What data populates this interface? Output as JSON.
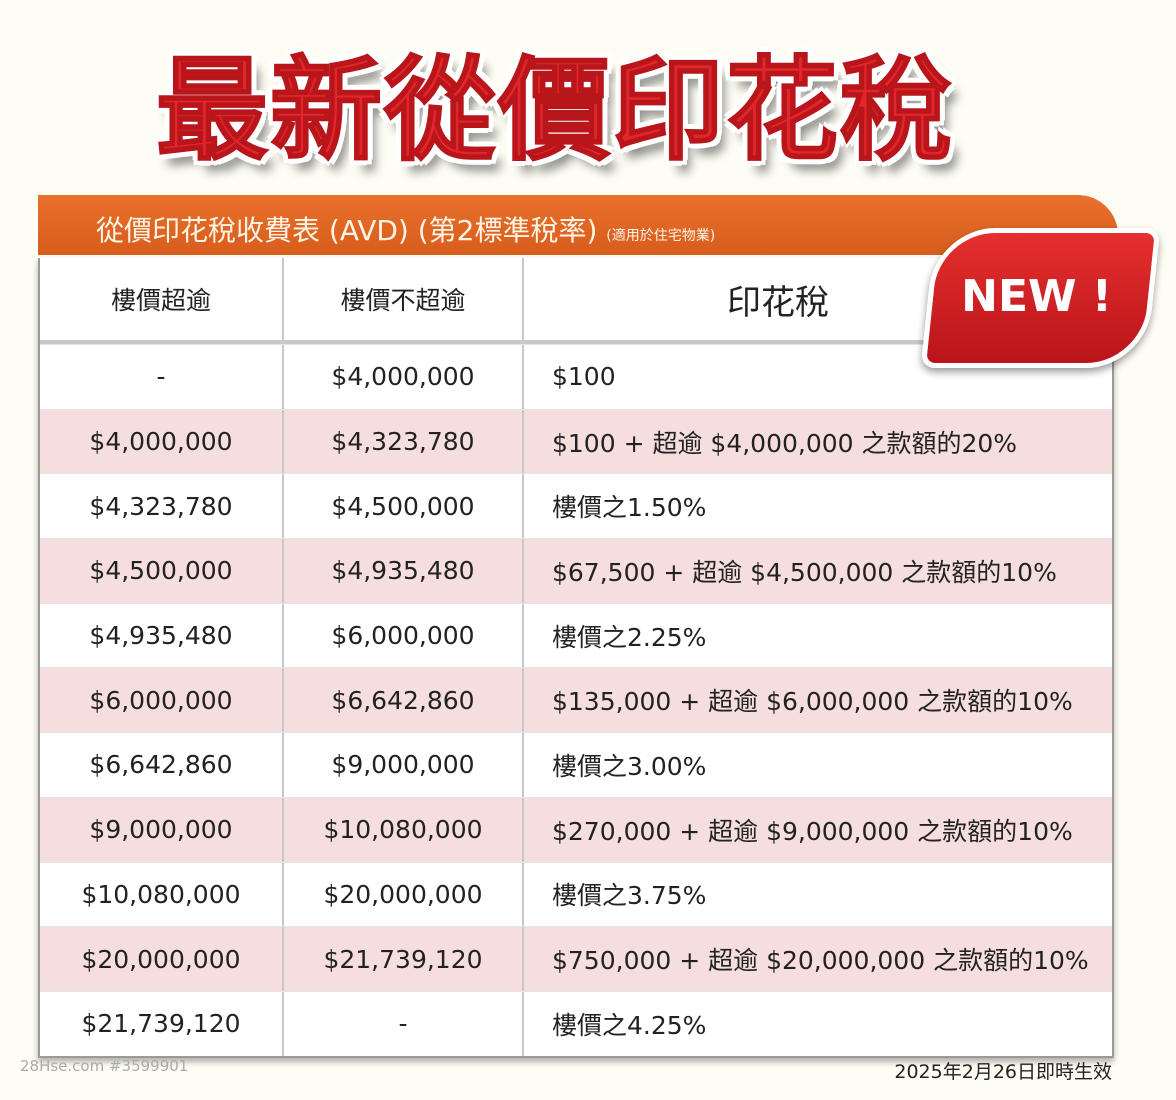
{
  "title": "最新從價印花稅",
  "table_title": "從價印花稅收費表 (AVD) (第2標準稅率)",
  "table_subtitle": "(適用於住宅物業)",
  "badge": "NEW !",
  "headers": [
    "樓價超逾",
    "樓價不超逾",
    "印花稅"
  ],
  "rows": [
    [
      "-",
      "$4,000,000",
      "$100"
    ],
    [
      "$4,000,000",
      "$4,323,780",
      "$100 + 超逾 $4,000,000 之款額的20%"
    ],
    [
      "$4,323,780",
      "$4,500,000",
      "樓價之1.50%"
    ],
    [
      "$4,500,000",
      "$4,935,480",
      "$67,500 + 超逾 $4,500,000 之款額的10%"
    ],
    [
      "$4,935,480",
      "$6,000,000",
      "樓價之2.25%"
    ],
    [
      "$6,000,000",
      "$6,642,860",
      "$135,000 + 超逾 $6,000,000 之款額的10%"
    ],
    [
      "$6,642,860",
      "$9,000,000",
      "樓價之3.00%"
    ],
    [
      "$9,000,000",
      "$10,080,000",
      "$270,000 + 超逾 $9,000,000 之款額的10%"
    ],
    [
      "$10,080,000",
      "$20,000,000",
      "樓價之3.75%"
    ],
    [
      "$20,000,000",
      "$21,739,120",
      "$750,000 + 超逾 $20,000,000 之款額的10%"
    ],
    [
      "$21,739,120",
      "-",
      "樓價之4.25%"
    ]
  ],
  "watermark": "28Hse.com #3599901",
  "effective": "2025年2月26日即時生效",
  "colors": {
    "title": "#e3262b",
    "header_bar": "#e06625",
    "alt_row": "#f6dede",
    "badge": "#d4222a"
  }
}
